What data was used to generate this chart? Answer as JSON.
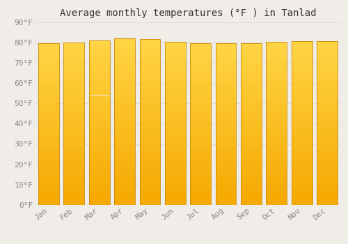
{
  "title": "Average monthly temperatures (°F ) in Tanlad",
  "months": [
    "Jan",
    "Feb",
    "Mar",
    "Apr",
    "May",
    "Jun",
    "Jul",
    "Aug",
    "Sep",
    "Oct",
    "Nov",
    "Dec"
  ],
  "values": [
    79.7,
    79.9,
    81.0,
    82.0,
    81.7,
    80.1,
    79.5,
    79.5,
    79.7,
    80.1,
    80.7,
    80.4
  ],
  "ylim": [
    0,
    90
  ],
  "yticks": [
    0,
    10,
    20,
    30,
    40,
    50,
    60,
    70,
    80,
    90
  ],
  "ytick_labels": [
    "0°F",
    "10°F",
    "20°F",
    "30°F",
    "40°F",
    "50°F",
    "60°F",
    "70°F",
    "80°F",
    "90°F"
  ],
  "bar_color_bottom": "#F5A800",
  "bar_color_top": "#FFD040",
  "bar_edge_color": "#C8880A",
  "background_color": "#F0EDE8",
  "grid_color": "#DDDDDD",
  "title_fontsize": 10,
  "tick_fontsize": 8,
  "title_color": "#333333",
  "tick_color": "#888888",
  "bar_width": 0.82
}
